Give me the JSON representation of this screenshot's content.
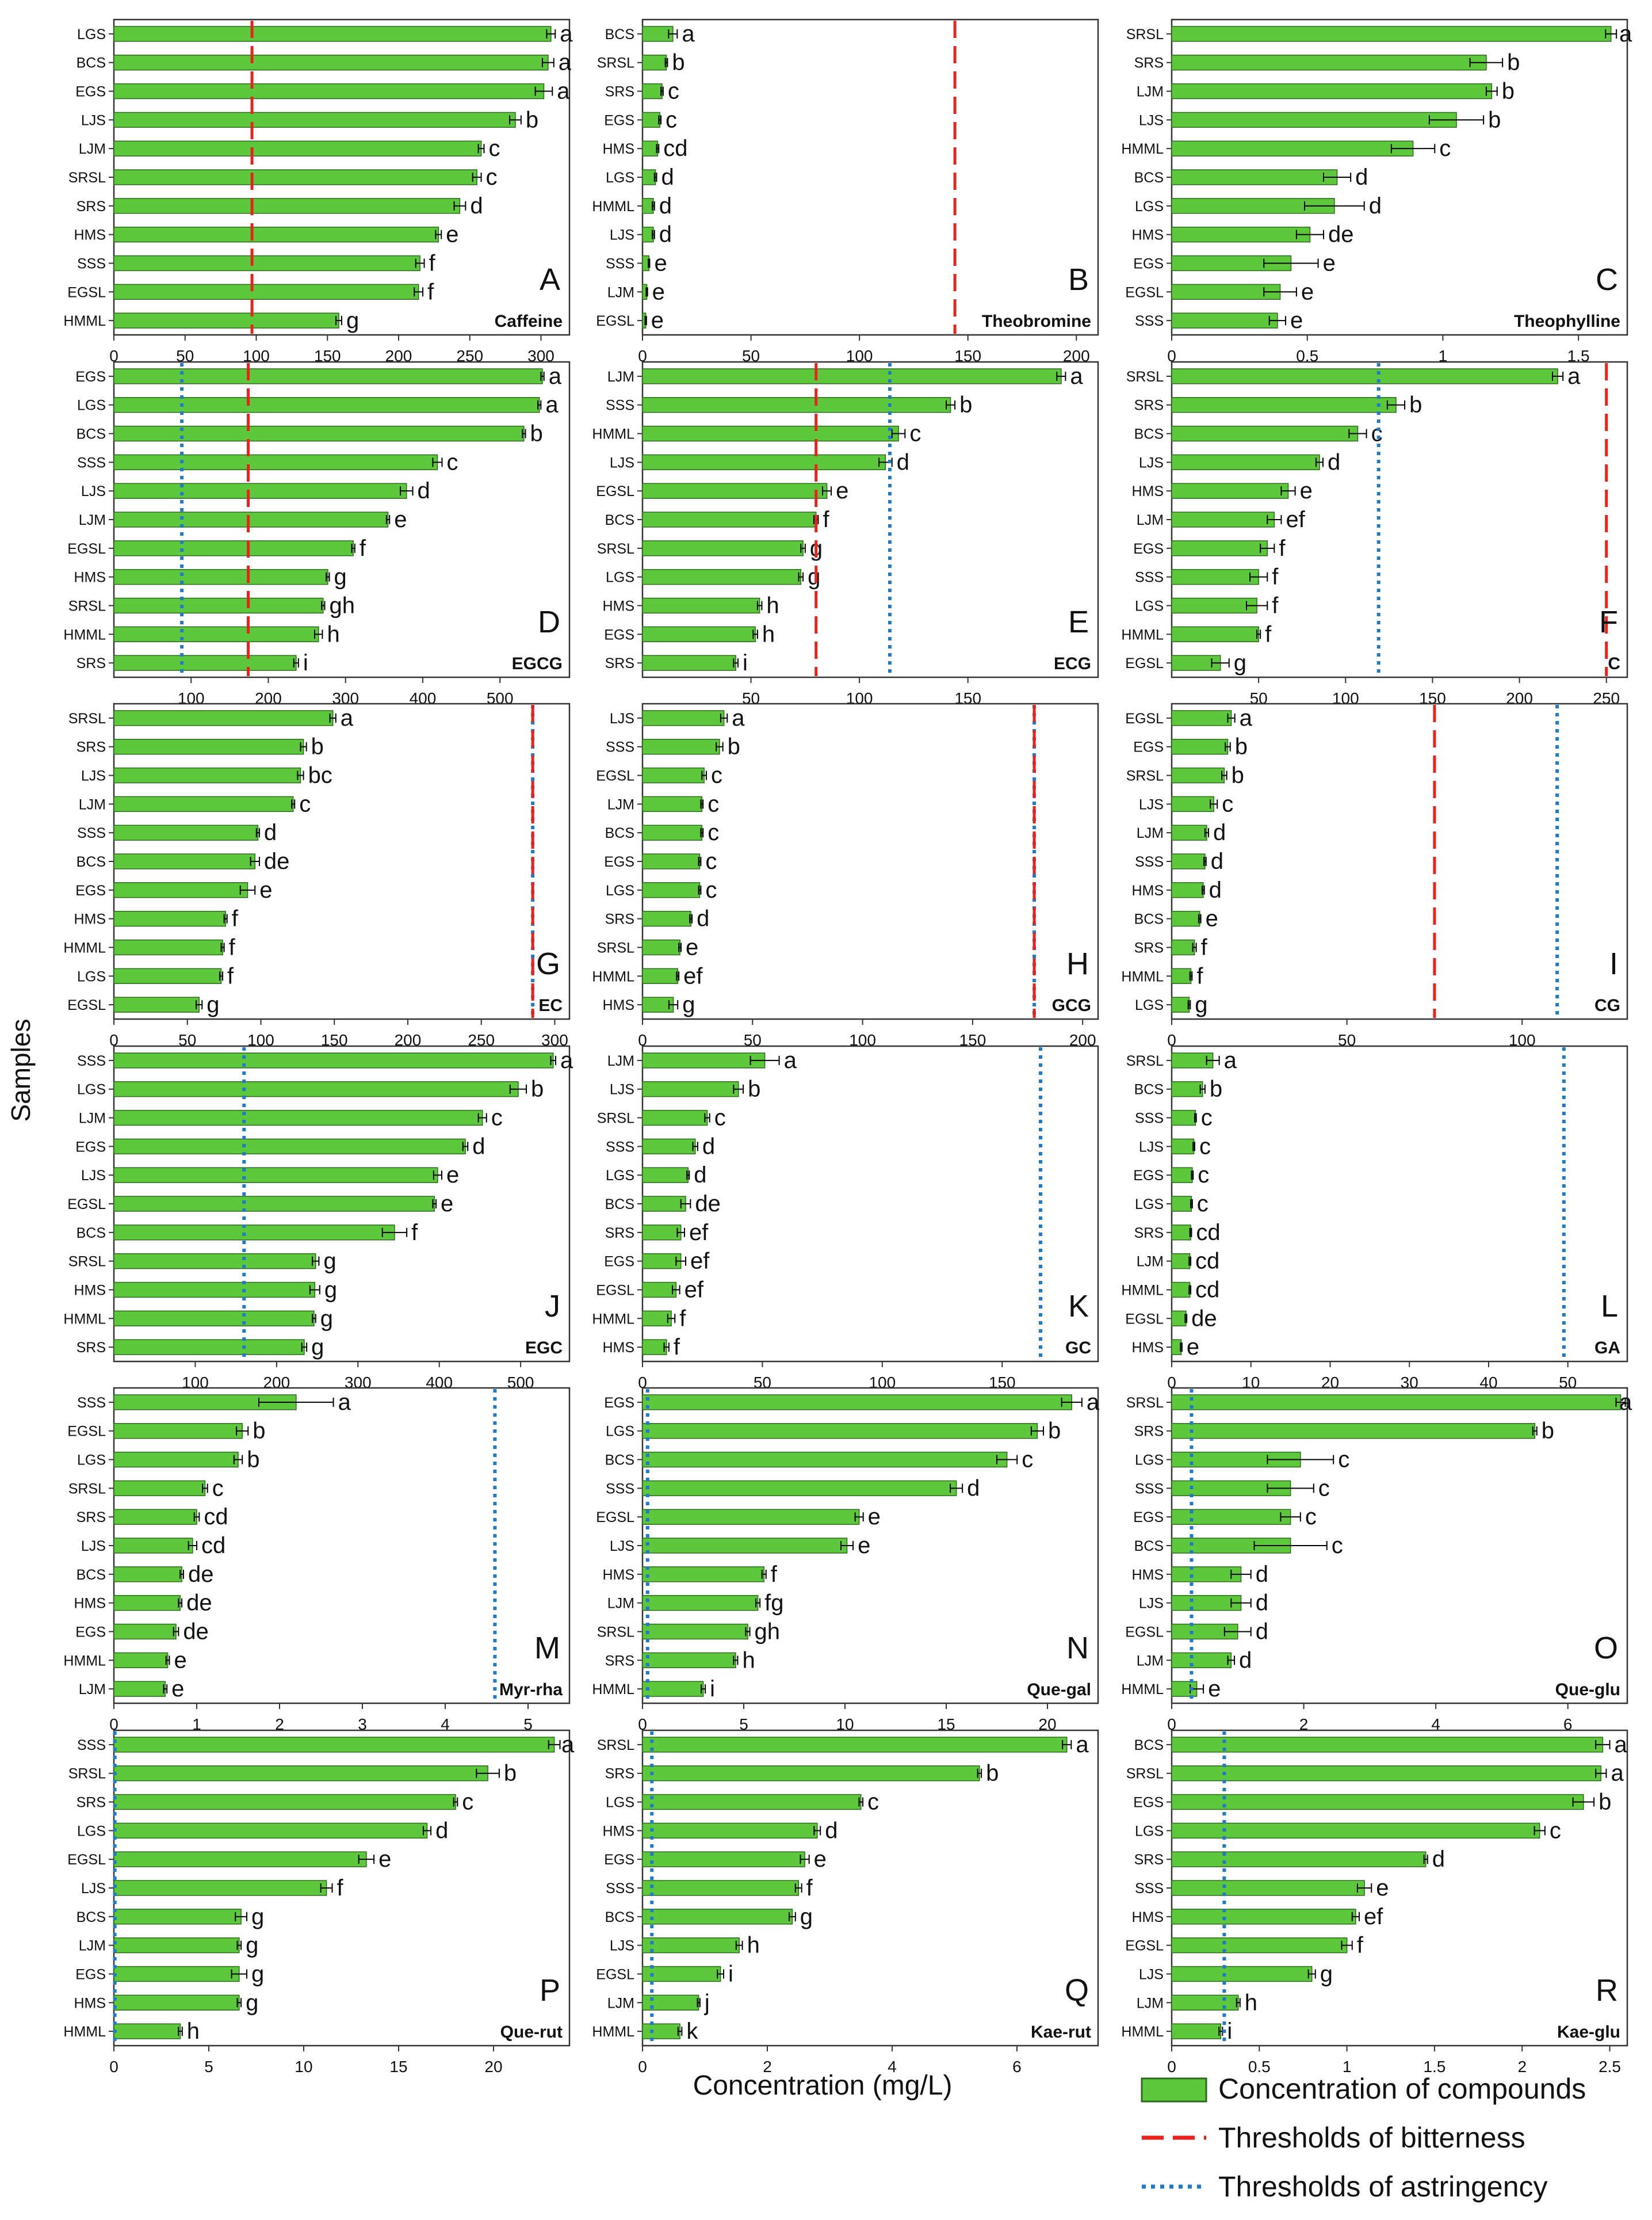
{
  "figure": {
    "ylabel": "Samples",
    "xlabel": "Concentration (mg/L)",
    "legend": {
      "placement": "bottom-right",
      "items": [
        {
          "label": "Concentration of compounds",
          "kind": "bar"
        },
        {
          "label": "Thresholds of bitterness",
          "kind": "bitter"
        },
        {
          "label": "Thresholds of astringency",
          "kind": "astringent"
        }
      ]
    },
    "colors": {
      "bar_fill": "#5dc83c",
      "bar_stroke": "#2d6a1e",
      "bitter": "#e8231c",
      "astringent": "#1f7ac9",
      "axis": "#333333",
      "text": "#111111"
    }
  },
  "chart_data": [
    {
      "type": "bar",
      "letter": "A",
      "title": "Caffeine",
      "xlim": [
        0,
        320
      ],
      "xticks": [
        0,
        50,
        100,
        150,
        200,
        250,
        300
      ],
      "bitter": 97,
      "astringent": null,
      "categories": [
        "LGS",
        "BCS",
        "EGS",
        "LJS",
        "LJM",
        "SRSL",
        "SRS",
        "HMS",
        "SSS",
        "EGSL",
        "HMML"
      ],
      "values": [
        307,
        305,
        302,
        282,
        258,
        255,
        243,
        228,
        215,
        214,
        158
      ],
      "errors": [
        3,
        4,
        6,
        4,
        2,
        3,
        4,
        2,
        3,
        3,
        2
      ],
      "labels": [
        "a",
        "a",
        "a",
        "b",
        "c",
        "c",
        "d",
        "e",
        "f",
        "f",
        "g"
      ]
    },
    {
      "type": "bar",
      "letter": "B",
      "title": "Theobromine",
      "xlim": [
        0,
        210
      ],
      "xticks": [
        0,
        50,
        100,
        150,
        200
      ],
      "bitter": 144,
      "astringent": null,
      "categories": [
        "BCS",
        "SRSL",
        "SRS",
        "EGS",
        "HMS",
        "LGS",
        "HMML",
        "LJS",
        "SSS",
        "LJM",
        "EGSL"
      ],
      "values": [
        14,
        11,
        9,
        8,
        7,
        6,
        5,
        5,
        3,
        2,
        1.5
      ],
      "errors": [
        2,
        0.5,
        0.5,
        0.5,
        0.5,
        0.5,
        0.5,
        0.5,
        0.3,
        0.3,
        0.3
      ],
      "labels": [
        "a",
        "b",
        "c",
        "c",
        "cd",
        "d",
        "d",
        "d",
        "e",
        "e",
        "e"
      ]
    },
    {
      "type": "bar",
      "letter": "C",
      "title": "Theophylline",
      "xlim": [
        0,
        1.68
      ],
      "xticks": [
        0,
        0.5,
        1,
        1.5
      ],
      "bitter": null,
      "astringent": null,
      "categories": [
        "SRSL",
        "SRS",
        "LJM",
        "LJS",
        "HMML",
        "BCS",
        "LGS",
        "HMS",
        "EGS",
        "EGSL",
        "SSS"
      ],
      "values": [
        1.62,
        1.16,
        1.18,
        1.05,
        0.89,
        0.61,
        0.6,
        0.51,
        0.44,
        0.4,
        0.39
      ],
      "errors": [
        0.02,
        0.06,
        0.02,
        0.1,
        0.08,
        0.05,
        0.11,
        0.05,
        0.1,
        0.06,
        0.03
      ],
      "labels": [
        "a",
        "b",
        "b",
        "b",
        "c",
        "d",
        "d",
        "de",
        "e",
        "e",
        "e"
      ]
    },
    {
      "type": "bar",
      "letter": "D",
      "title": "EGCG",
      "xlim": [
        0,
        590
      ],
      "xticks": [
        100,
        200,
        300,
        400,
        500
      ],
      "bitter": 174,
      "astringent": 88,
      "categories": [
        "EGS",
        "LGS",
        "BCS",
        "SSS",
        "LJS",
        "LJM",
        "EGSL",
        "HMS",
        "SRSL",
        "HMML",
        "SRS"
      ],
      "values": [
        555,
        551,
        531,
        419,
        379,
        355,
        310,
        277,
        271,
        265,
        236
      ],
      "errors": [
        2,
        2,
        2,
        6,
        8,
        2,
        2,
        2,
        2,
        5,
        3
      ],
      "labels": [
        "a",
        "a",
        "b",
        "c",
        "d",
        "e",
        "f",
        "g",
        "gh",
        "h",
        "i"
      ]
    },
    {
      "type": "bar",
      "letter": "E",
      "title": "ECG",
      "xlim": [
        0,
        210
      ],
      "xticks": [
        50,
        100,
        150
      ],
      "bitter": 80,
      "astringent": 114,
      "categories": [
        "LJM",
        "SSS",
        "HMML",
        "LJS",
        "EGSL",
        "BCS",
        "SRSL",
        "LGS",
        "HMS",
        "EGS",
        "SRS"
      ],
      "values": [
        193,
        142,
        118,
        112,
        85,
        80,
        74,
        73,
        54,
        52,
        43
      ],
      "errors": [
        2,
        2,
        3,
        3,
        2,
        1,
        1,
        1,
        1,
        1,
        1
      ],
      "labels": [
        "a",
        "b",
        "c",
        "d",
        "e",
        "f",
        "g",
        "g",
        "h",
        "h",
        "i"
      ]
    },
    {
      "type": "bar",
      "letter": "F",
      "title": "C",
      "xlim": [
        0,
        262
      ],
      "xticks": [
        50,
        100,
        150,
        200,
        250
      ],
      "bitter": 250,
      "astringent": 119,
      "categories": [
        "SRSL",
        "SRS",
        "BCS",
        "LJS",
        "HMS",
        "LJM",
        "EGS",
        "SSS",
        "LGS",
        "HMML",
        "EGSL"
      ],
      "values": [
        222,
        129,
        107,
        85,
        67,
        59,
        55,
        50,
        49,
        50,
        28
      ],
      "errors": [
        3,
        5,
        5,
        2,
        4,
        4,
        4,
        5,
        6,
        1,
        5
      ],
      "labels": [
        "a",
        "b",
        "c",
        "d",
        "e",
        "ef",
        "f",
        "f",
        "f",
        "f",
        "g"
      ]
    },
    {
      "type": "bar",
      "letter": "G",
      "title": "EC",
      "xlim": [
        0,
        310
      ],
      "xticks": [
        0,
        50,
        100,
        150,
        200,
        250,
        300
      ],
      "bitter": 285,
      "astringent": 285,
      "categories": [
        "SRSL",
        "SRS",
        "LJS",
        "LJM",
        "SSS",
        "BCS",
        "EGS",
        "HMS",
        "HMML",
        "LGS",
        "EGSL"
      ],
      "values": [
        149,
        129,
        127,
        122,
        98,
        96,
        91,
        76,
        74,
        73,
        58
      ],
      "errors": [
        2,
        2,
        2,
        1,
        1,
        3,
        5,
        1,
        1,
        1,
        2
      ],
      "labels": [
        "a",
        "b",
        "bc",
        "c",
        "d",
        "de",
        "e",
        "f",
        "f",
        "f",
        "g"
      ]
    },
    {
      "type": "bar",
      "letter": "H",
      "title": "GCG",
      "xlim": [
        0,
        207
      ],
      "xticks": [
        0,
        50,
        100,
        150,
        200
      ],
      "bitter": 178,
      "astringent": 178,
      "categories": [
        "LJS",
        "SSS",
        "EGSL",
        "LJM",
        "BCS",
        "EGS",
        "LGS",
        "SRS",
        "SRSL",
        "HMML",
        "HMS"
      ],
      "values": [
        37,
        35,
        28,
        27,
        27,
        26,
        26,
        22,
        17,
        16,
        14
      ],
      "errors": [
        1.5,
        1.5,
        1,
        0.5,
        0.5,
        0.5,
        0.5,
        0.5,
        0.5,
        0.5,
        2
      ],
      "labels": [
        "a",
        "b",
        "c",
        "c",
        "c",
        "c",
        "c",
        "d",
        "e",
        "ef",
        "g"
      ]
    },
    {
      "type": "bar",
      "letter": "I",
      "title": "CG",
      "xlim": [
        0,
        130
      ],
      "xticks": [
        0,
        50,
        100
      ],
      "bitter": 75,
      "astringent": 110,
      "categories": [
        "EGSL",
        "EGS",
        "SRSL",
        "LJS",
        "LJM",
        "SSS",
        "HMS",
        "BCS",
        "SRS",
        "HMML",
        "LGS"
      ],
      "values": [
        17,
        16,
        15,
        12,
        10,
        9.5,
        9,
        8,
        6.5,
        5.5,
        5
      ],
      "errors": [
        1,
        0.7,
        0.7,
        1,
        0.5,
        0.3,
        0.3,
        0.3,
        0.5,
        0.3,
        0.3
      ],
      "labels": [
        "a",
        "b",
        "b",
        "c",
        "d",
        "d",
        "d",
        "e",
        "f",
        "f",
        "g"
      ]
    },
    {
      "type": "bar",
      "letter": "J",
      "title": "EGC",
      "xlim": [
        0,
        560
      ],
      "xticks": [
        100,
        200,
        300,
        400,
        500
      ],
      "bitter": null,
      "astringent": 160,
      "categories": [
        "SSS",
        "LGS",
        "LJM",
        "EGS",
        "LJS",
        "EGSL",
        "BCS",
        "SRSL",
        "HMS",
        "HMML",
        "SRS"
      ],
      "values": [
        540,
        497,
        453,
        432,
        398,
        394,
        345,
        248,
        247,
        246,
        234
      ],
      "errors": [
        3,
        10,
        5,
        3,
        5,
        2,
        15,
        4,
        6,
        2,
        3
      ],
      "labels": [
        "a",
        "b",
        "c",
        "d",
        "e",
        "e",
        "f",
        "g",
        "g",
        "g",
        "g"
      ]
    },
    {
      "type": "bar",
      "letter": "K",
      "title": "GC",
      "xlim": [
        0,
        190
      ],
      "xticks": [
        0,
        50,
        100,
        150
      ],
      "bitter": null,
      "astringent": 166,
      "categories": [
        "LJM",
        "LJS",
        "SRSL",
        "SSS",
        "LGS",
        "BCS",
        "SRS",
        "EGS",
        "EGSL",
        "HMML",
        "HMS"
      ],
      "values": [
        51,
        40,
        27,
        22,
        19,
        18,
        16,
        16,
        14,
        12,
        10
      ],
      "errors": [
        6,
        2,
        1,
        1,
        0.5,
        2,
        1.5,
        2,
        1.5,
        1.5,
        1
      ],
      "labels": [
        "a",
        "b",
        "c",
        "d",
        "d",
        "de",
        "ef",
        "ef",
        "ef",
        "f",
        "f"
      ]
    },
    {
      "type": "bar",
      "letter": "L",
      "title": "GA",
      "xlim": [
        0,
        57.5
      ],
      "xticks": [
        0,
        10,
        20,
        30,
        40,
        50
      ],
      "bitter": null,
      "astringent": 49.5,
      "categories": [
        "SRSL",
        "BCS",
        "SSS",
        "LJS",
        "EGS",
        "LGS",
        "SRS",
        "LJM",
        "HMML",
        "EGSL",
        "HMS"
      ],
      "values": [
        5.2,
        3.9,
        3,
        2.8,
        2.6,
        2.5,
        2.4,
        2.3,
        2.3,
        1.8,
        1.2
      ],
      "errors": [
        0.8,
        0.3,
        0.1,
        0.1,
        0.1,
        0.1,
        0.1,
        0.1,
        0.1,
        0.1,
        0.1
      ],
      "labels": [
        "a",
        "b",
        "c",
        "c",
        "c",
        "c",
        "cd",
        "cd",
        "cd",
        "de",
        "e"
      ]
    },
    {
      "type": "bar",
      "letter": "M",
      "title": "Myr-rha",
      "xlim": [
        0,
        5.5
      ],
      "xticks": [
        0,
        1,
        2,
        3,
        4,
        5
      ],
      "bitter": null,
      "astringent": 4.6,
      "categories": [
        "SSS",
        "EGSL",
        "LGS",
        "SRSL",
        "SRS",
        "LJS",
        "BCS",
        "HMS",
        "EGS",
        "HMML",
        "LJM"
      ],
      "values": [
        2.2,
        1.55,
        1.5,
        1.1,
        1,
        0.95,
        0.82,
        0.8,
        0.75,
        0.65,
        0.62
      ],
      "errors": [
        0.45,
        0.07,
        0.05,
        0.03,
        0.03,
        0.05,
        0.02,
        0.02,
        0.03,
        0.02,
        0.02
      ],
      "labels": [
        "a",
        "b",
        "b",
        "c",
        "cd",
        "cd",
        "de",
        "de",
        "de",
        "e",
        "e"
      ]
    },
    {
      "type": "bar",
      "letter": "N",
      "title": "Que-gal",
      "xlim": [
        0,
        22.5
      ],
      "xticks": [
        0,
        5,
        10,
        15,
        20
      ],
      "bitter": null,
      "astringent": 0.25,
      "categories": [
        "EGS",
        "LGS",
        "BCS",
        "SSS",
        "EGSL",
        "LJS",
        "HMS",
        "LJM",
        "SRSL",
        "SRS",
        "HMML"
      ],
      "values": [
        21.2,
        19.5,
        18,
        15.5,
        10.7,
        10.1,
        6,
        5.7,
        5.2,
        4.6,
        3
      ],
      "errors": [
        0.5,
        0.3,
        0.5,
        0.3,
        0.2,
        0.3,
        0.1,
        0.1,
        0.1,
        0.1,
        0.1
      ],
      "labels": [
        "a",
        "b",
        "c",
        "d",
        "e",
        "e",
        "f",
        "fg",
        "gh",
        "h",
        "i"
      ]
    },
    {
      "type": "bar",
      "letter": "O",
      "title": "Que-glu",
      "xlim": [
        0,
        6.9
      ],
      "xticks": [
        0,
        2,
        4,
        6
      ],
      "bitter": null,
      "astringent": 0.3,
      "categories": [
        "SRSL",
        "SRS",
        "LGS",
        "SSS",
        "EGS",
        "BCS",
        "HMS",
        "LJS",
        "EGSL",
        "LJM",
        "HMML"
      ],
      "values": [
        6.8,
        5.5,
        1.95,
        1.8,
        1.8,
        1.8,
        1.05,
        1.05,
        1,
        0.9,
        0.38
      ],
      "errors": [
        0.07,
        0.03,
        0.5,
        0.35,
        0.15,
        0.55,
        0.15,
        0.15,
        0.2,
        0.05,
        0.1
      ],
      "labels": [
        "a",
        "b",
        "c",
        "c",
        "c",
        "c",
        "d",
        "d",
        "d",
        "d",
        "e"
      ]
    },
    {
      "type": "bar",
      "letter": "P",
      "title": "Que-rut",
      "xlim": [
        0,
        24
      ],
      "xticks": [
        0,
        5,
        10,
        15,
        20
      ],
      "bitter": null,
      "astringent": 0.05,
      "categories": [
        "SSS",
        "SRSL",
        "SRS",
        "LGS",
        "EGSL",
        "LJS",
        "BCS",
        "LJM",
        "EGS",
        "HMS",
        "HMML"
      ],
      "values": [
        23.2,
        19.7,
        18,
        16.5,
        13.3,
        11.2,
        6.7,
        6.6,
        6.6,
        6.6,
        3.5
      ],
      "errors": [
        0.3,
        0.6,
        0.1,
        0.2,
        0.4,
        0.3,
        0.3,
        0.1,
        0.4,
        0.1,
        0.1
      ],
      "labels": [
        "a",
        "b",
        "c",
        "d",
        "e",
        "f",
        "g",
        "g",
        "g",
        "g",
        "h"
      ]
    },
    {
      "type": "bar",
      "letter": "Q",
      "title": "Kae-rut",
      "xlim": [
        0,
        7.3
      ],
      "xticks": [
        0,
        2,
        4,
        6
      ],
      "bitter": null,
      "astringent": 0.15,
      "categories": [
        "SRSL",
        "SRS",
        "LGS",
        "HMS",
        "EGS",
        "SSS",
        "BCS",
        "LJS",
        "EGSL",
        "LJM",
        "HMML"
      ],
      "values": [
        6.8,
        5.4,
        3.5,
        2.8,
        2.6,
        2.5,
        2.4,
        1.55,
        1.25,
        0.9,
        0.6
      ],
      "errors": [
        0.07,
        0.03,
        0.03,
        0.05,
        0.07,
        0.05,
        0.05,
        0.05,
        0.05,
        0.02,
        0.03
      ],
      "labels": [
        "a",
        "b",
        "c",
        "d",
        "e",
        "f",
        "g",
        "h",
        "i",
        "j",
        "k"
      ]
    },
    {
      "type": "bar",
      "letter": "R",
      "title": "Kae-glu",
      "xlim": [
        0,
        2.6
      ],
      "xticks": [
        0,
        0.5,
        1,
        1.5,
        2,
        2.5
      ],
      "bitter": null,
      "astringent": 0.3,
      "categories": [
        "BCS",
        "SRSL",
        "EGS",
        "LGS",
        "SRS",
        "SSS",
        "HMS",
        "EGSL",
        "LJS",
        "LJM",
        "HMML"
      ],
      "values": [
        2.46,
        2.45,
        2.35,
        2.1,
        1.45,
        1.1,
        1.05,
        1,
        0.8,
        0.38,
        0.28
      ],
      "errors": [
        0.04,
        0.03,
        0.06,
        0.03,
        0.01,
        0.04,
        0.02,
        0.03,
        0.02,
        0.01,
        0.01
      ],
      "labels": [
        "a",
        "a",
        "b",
        "c",
        "d",
        "e",
        "ef",
        "f",
        "g",
        "h",
        "i"
      ]
    }
  ]
}
